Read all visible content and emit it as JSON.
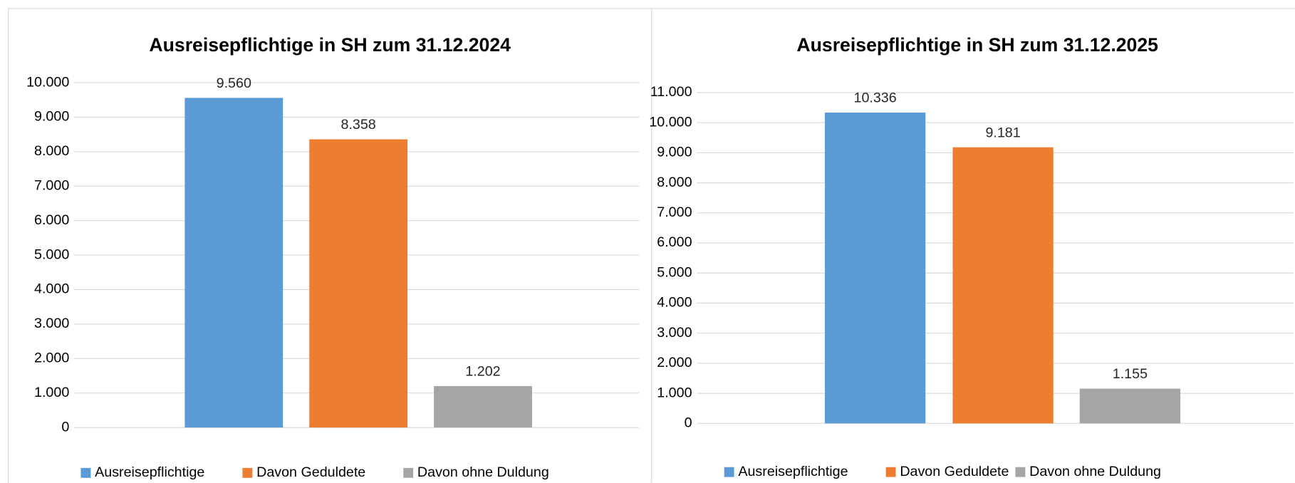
{
  "chart_data": [
    {
      "type": "bar",
      "title": "Ausreisepflichtige in SH zum 31.12.2024",
      "series": [
        {
          "name": "Ausreisepflichtige",
          "color": "#5b9bd5",
          "values": [
            9560
          ],
          "value_labels": [
            "9.560"
          ]
        },
        {
          "name": "Davon Geduldete",
          "color": "#ed7d31",
          "values": [
            8358
          ],
          "value_labels": [
            "8.358"
          ]
        },
        {
          "name": "Davon ohne Duldung",
          "color": "#a5a5a5",
          "values": [
            1202
          ],
          "value_labels": [
            "1.202"
          ]
        }
      ],
      "ylim": [
        0,
        10000
      ],
      "yticks": [
        0,
        {
          "value": 1000,
          "label": "1.000"
        },
        {
          "value": 2000,
          "label": "2.000"
        },
        {
          "value": 3000,
          "label": "3.000"
        },
        {
          "value": 4000,
          "label": "4.000"
        },
        {
          "value": 5000,
          "label": "5.000"
        },
        {
          "value": 6000,
          "label": "6.000"
        },
        {
          "value": 7000,
          "label": "7.000"
        },
        {
          "value": 8000,
          "label": "8.000"
        },
        {
          "value": 9000,
          "label": "9.000"
        },
        {
          "value": 10000,
          "label": "10.000"
        }
      ],
      "grid": true,
      "legend": "bottom"
    },
    {
      "type": "bar",
      "title": "Ausreisepflichtige in SH zum 31.12.2025",
      "series": [
        {
          "name": "Ausreisepflichtige",
          "color": "#5b9bd5",
          "values": [
            10336
          ],
          "value_labels": [
            "10.336"
          ]
        },
        {
          "name": "Davon Geduldete",
          "color": "#ed7d31",
          "values": [
            9181
          ],
          "value_labels": [
            "9.181"
          ]
        },
        {
          "name": "Davon ohne Duldung",
          "color": "#a5a5a5",
          "values": [
            1155
          ],
          "value_labels": [
            "1.155"
          ]
        }
      ],
      "ylim": [
        0,
        11000
      ],
      "yticks": [
        0,
        {
          "value": 1000,
          "label": "1.000"
        },
        {
          "value": 2000,
          "label": "2.000"
        },
        {
          "value": 3000,
          "label": "3.000"
        },
        {
          "value": 4000,
          "label": "4.000"
        },
        {
          "value": 5000,
          "label": "5.000"
        },
        {
          "value": 6000,
          "label": "6.000"
        },
        {
          "value": 7000,
          "label": "7.000"
        },
        {
          "value": 8000,
          "label": "8.000"
        },
        {
          "value": 9000,
          "label": "9.000"
        },
        {
          "value": 10000,
          "label": "10.000"
        },
        {
          "value": 11000,
          "label": "11.000"
        }
      ],
      "grid": true,
      "legend": "bottom"
    }
  ]
}
